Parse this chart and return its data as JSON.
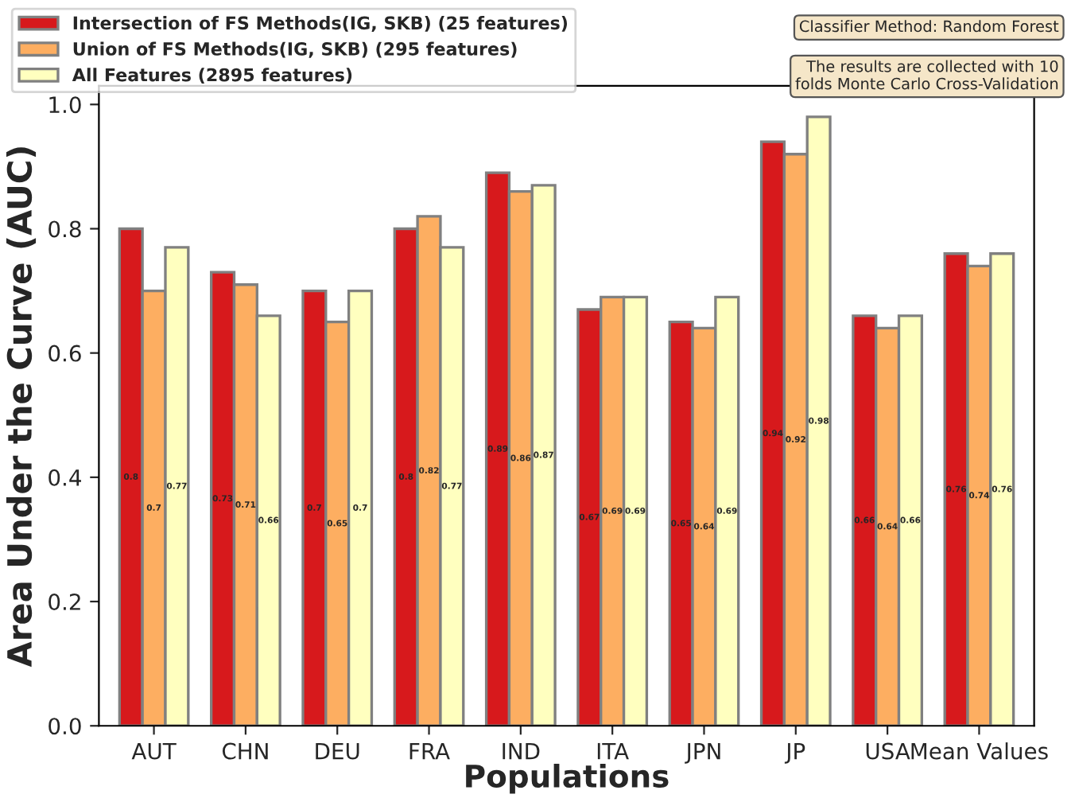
{
  "chart_data": {
    "type": "bar",
    "xlabel": "Populations",
    "ylabel": "Area Under the Curve (AUC)",
    "categories": [
      "AUT",
      "CHN",
      "DEU",
      "FRA",
      "IND",
      "ITA",
      "JPN",
      "JP",
      "USA",
      "Mean Values"
    ],
    "series": [
      {
        "name": "Intersection of FS Methods(IG, SKB) (25 features)",
        "color": "#d7191c",
        "values": [
          0.8,
          0.73,
          0.7,
          0.8,
          0.89,
          0.67,
          0.65,
          0.94,
          0.66,
          0.76
        ]
      },
      {
        "name": "Union of FS Methods(IG, SKB) (295 features)",
        "color": "#fdae61",
        "values": [
          0.7,
          0.71,
          0.65,
          0.82,
          0.86,
          0.69,
          0.64,
          0.92,
          0.64,
          0.74
        ]
      },
      {
        "name": "All Features (2895 features)",
        "color": "#ffffbf",
        "values": [
          0.77,
          0.66,
          0.7,
          0.77,
          0.87,
          0.69,
          0.69,
          0.98,
          0.66,
          0.76
        ]
      }
    ],
    "ylim": [
      0,
      1.03
    ],
    "yticks": [
      {
        "value": 0,
        "label": "0.0"
      },
      {
        "value": 0.2,
        "label": "0.2"
      },
      {
        "value": 0.4,
        "label": "0.4"
      },
      {
        "value": 0.6,
        "label": "0.6"
      },
      {
        "value": 0.8,
        "label": "0.8"
      },
      {
        "value": 1.0,
        "label": "1.0"
      }
    ],
    "data_labels": true,
    "legend": "top left",
    "grid": false,
    "annotations": [
      "Classifier Method: Random Forest",
      "The results are collected with 10\nfolds Monte Carlo Cross-Validation"
    ]
  }
}
